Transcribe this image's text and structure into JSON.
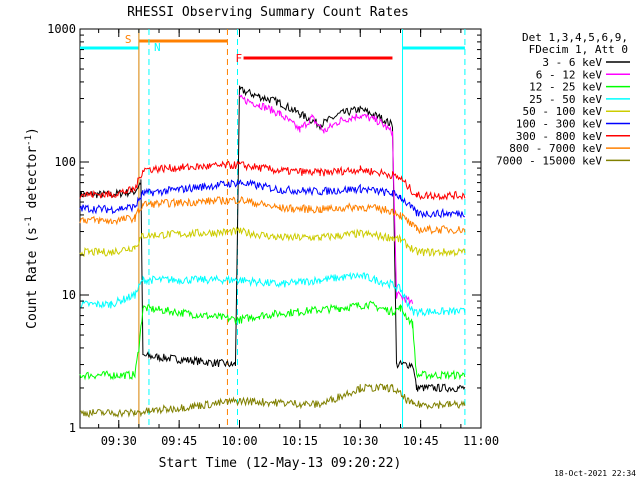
{
  "chart_data": {
    "type": "line",
    "title": "RHESSI Observing Summary Count Rates",
    "xlabel": "Start Time (12-May-13 09:20:22)",
    "ylabel_main": "Count Rate (s",
    "ylabel_sup1": "-1",
    "ylabel_mid": " detector",
    "ylabel_sup2": "-1",
    "ylabel_end": ")",
    "yscale": "log",
    "ylim": [
      1,
      1000
    ],
    "xlim": [
      "09:20:22",
      "11:00"
    ],
    "x_ticks": [
      "09:30",
      "09:45",
      "10:00",
      "10:15",
      "10:30",
      "10:45",
      "11:00"
    ],
    "y_ticks": [
      "1",
      "10",
      "100",
      "1000"
    ],
    "legend_header": [
      "Det 1,3,4,5,6,9,",
      "FDecim 1, Att 0"
    ],
    "legend_position": "right",
    "footer": "18-Oct-2021 22:34",
    "series": [
      {
        "name": "3 - 6 keV",
        "color": "#000000",
        "points": [
          [
            "09:20:22",
            57
          ],
          [
            "09:28",
            57
          ],
          [
            "09:34",
            60
          ],
          [
            "09:35:30",
            70
          ],
          [
            "09:36",
            3.5
          ],
          [
            "09:58",
            3
          ],
          [
            "09:59",
            3
          ],
          [
            "10:00",
            350
          ],
          [
            "10:05",
            310
          ],
          [
            "10:10",
            280
          ],
          [
            "10:15",
            230
          ],
          [
            "10:20",
            190
          ],
          [
            "10:25",
            230
          ],
          [
            "10:30",
            250
          ],
          [
            "10:35",
            215
          ],
          [
            "10:38",
            190
          ],
          [
            "10:39",
            3
          ],
          [
            "10:43",
            3
          ],
          [
            "10:44",
            2
          ],
          [
            "10:56",
            2
          ]
        ]
      },
      {
        "name": "6 - 12 keV",
        "color": "#ff00ff",
        "points": [
          [
            "10:00",
            300
          ],
          [
            "10:05",
            270
          ],
          [
            "10:10",
            230
          ],
          [
            "10:15",
            175
          ],
          [
            "10:18",
            215
          ],
          [
            "10:21",
            170
          ],
          [
            "10:25",
            205
          ],
          [
            "10:30",
            225
          ],
          [
            "10:35",
            200
          ],
          [
            "10:38",
            165
          ],
          [
            "10:39",
            10
          ],
          [
            "10:41",
            9.5
          ],
          [
            "10:43",
            8.5
          ]
        ]
      },
      {
        "name": "12 - 25 keV",
        "color": "#00ff00",
        "points": [
          [
            "09:20:22",
            2.5
          ],
          [
            "09:34",
            2.5
          ],
          [
            "09:35",
            4
          ],
          [
            "09:36",
            8
          ],
          [
            "10:00",
            6.5
          ],
          [
            "10:05",
            7
          ],
          [
            "10:15",
            7.5
          ],
          [
            "10:25",
            8
          ],
          [
            "10:32",
            8.5
          ],
          [
            "10:38",
            7.5
          ],
          [
            "10:40",
            8
          ],
          [
            "10:43",
            6
          ],
          [
            "10:44",
            2.5
          ],
          [
            "10:56",
            2.5
          ]
        ]
      },
      {
        "name": "25 - 50 keV",
        "color": "#00ffff",
        "points": [
          [
            "09:20:22",
            8.5
          ],
          [
            "09:28",
            8.5
          ],
          [
            "09:34",
            10
          ],
          [
            "09:36",
            13
          ],
          [
            "10:00",
            13
          ],
          [
            "10:10",
            12
          ],
          [
            "10:20",
            13
          ],
          [
            "10:30",
            14
          ],
          [
            "10:38",
            12
          ],
          [
            "10:40",
            11
          ],
          [
            "10:43",
            7.5
          ],
          [
            "10:56",
            7.5
          ]
        ]
      },
      {
        "name": "50 - 100 keV",
        "color": "#cccc00",
        "points": [
          [
            "09:20:22",
            21
          ],
          [
            "09:28",
            21
          ],
          [
            "09:34",
            23
          ],
          [
            "09:36",
            28
          ],
          [
            "10:00",
            30
          ],
          [
            "10:10",
            27
          ],
          [
            "10:20",
            27
          ],
          [
            "10:30",
            29
          ],
          [
            "10:38",
            27
          ],
          [
            "10:40",
            26
          ],
          [
            "10:44",
            21
          ],
          [
            "10:56",
            21
          ]
        ]
      },
      {
        "name": "100 - 300 keV",
        "color": "#0000ff",
        "points": [
          [
            "09:20:22",
            45
          ],
          [
            "09:28",
            44
          ],
          [
            "09:34",
            46
          ],
          [
            "09:36",
            58
          ],
          [
            "10:00",
            70
          ],
          [
            "10:10",
            62
          ],
          [
            "10:20",
            60
          ],
          [
            "10:30",
            63
          ],
          [
            "10:38",
            58
          ],
          [
            "10:40",
            55
          ],
          [
            "10:44",
            41
          ],
          [
            "10:56",
            41
          ]
        ]
      },
      {
        "name": "300 - 800 keV",
        "color": "#ff0000",
        "points": [
          [
            "09:20:22",
            57
          ],
          [
            "09:28",
            57
          ],
          [
            "09:34",
            62
          ],
          [
            "09:36",
            88
          ],
          [
            "10:00",
            95
          ],
          [
            "10:10",
            86
          ],
          [
            "10:20",
            83
          ],
          [
            "10:30",
            88
          ],
          [
            "10:38",
            80
          ],
          [
            "10:40",
            75
          ],
          [
            "10:44",
            56
          ],
          [
            "10:56",
            56
          ]
        ]
      },
      {
        "name": "800 - 7000 keV",
        "color": "#ff8000",
        "points": [
          [
            "09:20:22",
            37
          ],
          [
            "09:28",
            36
          ],
          [
            "09:34",
            38
          ],
          [
            "09:36",
            48
          ],
          [
            "10:00",
            52
          ],
          [
            "10:10",
            45
          ],
          [
            "10:20",
            44
          ],
          [
            "10:30",
            46
          ],
          [
            "10:38",
            43
          ],
          [
            "10:40",
            40
          ],
          [
            "10:44",
            31
          ],
          [
            "10:56",
            31
          ]
        ]
      },
      {
        "name": "7000 - 15000 keV",
        "color": "#808000",
        "points": [
          [
            "09:20:22",
            1.3
          ],
          [
            "09:34",
            1.3
          ],
          [
            "10:00",
            1.6
          ],
          [
            "10:20",
            1.5
          ],
          [
            "10:30",
            2
          ],
          [
            "10:38",
            2
          ],
          [
            "10:43",
            1.5
          ],
          [
            "10:56",
            1.5
          ]
        ]
      }
    ],
    "markers": {
      "cyan_solid": [
        "09:35",
        "10:40:30"
      ],
      "cyan_dashed": [
        "09:37:30",
        "09:59:30",
        "10:56"
      ],
      "orange_solid": [
        "09:35"
      ],
      "orange_dashed": [
        "09:57"
      ],
      "saa_bars": [
        [
          "09:20:22",
          "09:35"
        ],
        [
          "10:40:30",
          "10:56"
        ]
      ],
      "s_bar": [
        "09:35",
        "09:57"
      ],
      "f_bar": [
        "10:01",
        "10:38"
      ]
    },
    "marker_labels": {
      "s": "S",
      "n": "N",
      "f": "F"
    }
  }
}
